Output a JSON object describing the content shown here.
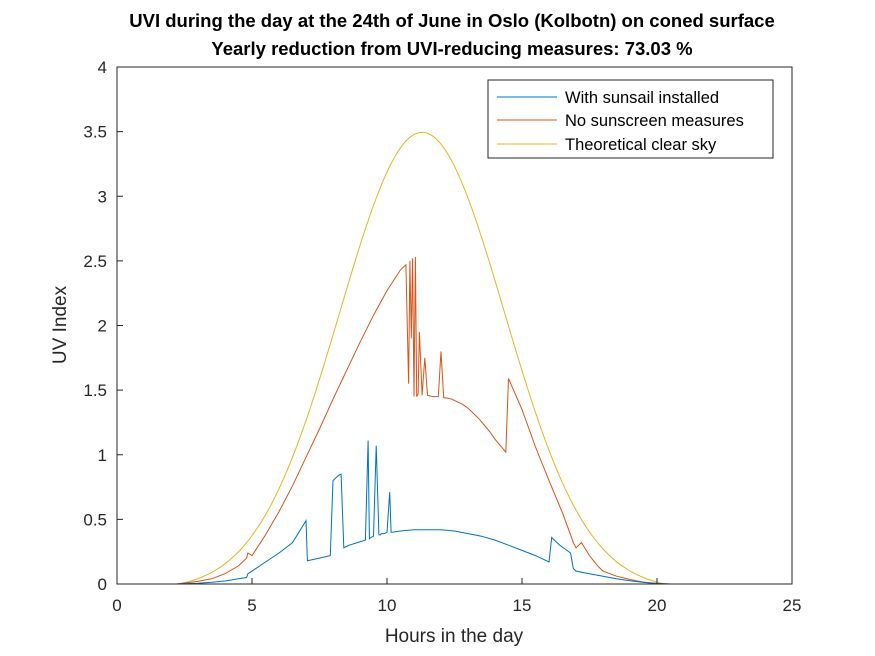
{
  "chart_data": {
    "type": "line",
    "title": "UVI during the day at the 24th of June in Oslo (Kolbotn) on coned surface",
    "subtitle": "Yearly reduction from UVI-reducing measures: 73.03 %",
    "xlabel": "Hours in the day",
    "ylabel": "UV Index",
    "xlim": [
      0,
      25
    ],
    "ylim": [
      0,
      4
    ],
    "xticks": [
      "0",
      "5",
      "10",
      "15",
      "20",
      "25"
    ],
    "yticks": [
      "0",
      "0.5",
      "1",
      "1.5",
      "2",
      "2.5",
      "3",
      "3.5",
      "4"
    ],
    "grid": false,
    "legend_position": "top-right",
    "series": [
      {
        "name": "With sunsail installed",
        "color": "#0072BD",
        "x": [
          0,
          2.2,
          3.0,
          3.5,
          4.0,
          4.5,
          4.8,
          4.85,
          5.0,
          5.5,
          6.0,
          6.5,
          7.0,
          7.05,
          7.5,
          7.9,
          8.0,
          8.1,
          8.2,
          8.3,
          8.4,
          8.5,
          8.6,
          8.9,
          9.2,
          9.3,
          9.35,
          9.4,
          9.5,
          9.6,
          9.7,
          9.75,
          9.8,
          9.9,
          10.0,
          10.1,
          10.15,
          10.2,
          10.5,
          11.0,
          11.5,
          12.0,
          12.5,
          13.0,
          13.5,
          14.0,
          14.5,
          15.0,
          15.5,
          16.0,
          16.1,
          16.2,
          16.4,
          16.6,
          16.8,
          16.9,
          17.0,
          17.5,
          18.0,
          18.5,
          19.0,
          19.5,
          20.0,
          20.5,
          24
        ],
        "y": [
          0,
          0,
          0.006,
          0.013,
          0.023,
          0.04,
          0.05,
          0.08,
          0.1,
          0.17,
          0.24,
          0.32,
          0.49,
          0.18,
          0.2,
          0.22,
          0.8,
          0.82,
          0.84,
          0.85,
          0.28,
          0.29,
          0.3,
          0.32,
          0.34,
          1.11,
          0.35,
          0.36,
          0.37,
          1.07,
          0.38,
          0.38,
          0.39,
          0.39,
          0.4,
          0.71,
          0.4,
          0.4,
          0.41,
          0.42,
          0.42,
          0.42,
          0.41,
          0.39,
          0.37,
          0.34,
          0.3,
          0.26,
          0.22,
          0.17,
          0.36,
          0.34,
          0.3,
          0.27,
          0.24,
          0.12,
          0.1,
          0.08,
          0.06,
          0.04,
          0.025,
          0.012,
          0.004,
          0,
          0
        ]
      },
      {
        "name": "No sunscreen measures",
        "color": "#D95319",
        "x": [
          0,
          2.2,
          3.0,
          3.5,
          4.0,
          4.5,
          4.8,
          4.85,
          5.0,
          5.5,
          6.0,
          6.5,
          7.0,
          7.5,
          8.0,
          8.5,
          9.0,
          9.5,
          10.0,
          10.5,
          10.7,
          10.8,
          10.85,
          10.9,
          10.95,
          11.0,
          11.05,
          11.1,
          11.15,
          11.2,
          11.3,
          11.4,
          11.5,
          11.7,
          11.9,
          12.0,
          12.1,
          12.2,
          12.4,
          12.6,
          12.8,
          13.0,
          13.2,
          13.4,
          13.6,
          13.8,
          14.0,
          14.2,
          14.4,
          14.5,
          15.0,
          15.5,
          16.0,
          16.5,
          16.8,
          16.9,
          17.0,
          17.2,
          17.5,
          17.8,
          18.0,
          18.5,
          19.0,
          19.5,
          20.0,
          20.5,
          24
        ],
        "y": [
          0,
          0,
          0.02,
          0.04,
          0.08,
          0.14,
          0.2,
          0.24,
          0.22,
          0.38,
          0.56,
          0.76,
          0.98,
          1.2,
          1.43,
          1.65,
          1.87,
          2.08,
          2.27,
          2.43,
          2.47,
          1.55,
          2.5,
          1.9,
          2.52,
          1.45,
          2.53,
          1.45,
          1.47,
          1.95,
          1.46,
          1.75,
          1.46,
          1.45,
          1.45,
          1.8,
          1.44,
          1.44,
          1.43,
          1.41,
          1.39,
          1.36,
          1.32,
          1.28,
          1.23,
          1.18,
          1.12,
          1.07,
          1.02,
          1.59,
          1.35,
          1.06,
          0.8,
          0.55,
          0.38,
          0.32,
          0.28,
          0.32,
          0.22,
          0.14,
          0.1,
          0.06,
          0.035,
          0.015,
          0.005,
          0,
          0
        ]
      },
      {
        "name": "Theoretical clear sky",
        "color": "#EDB120",
        "center": 11.3,
        "peak": 3.54,
        "sigma": 3.05,
        "x": [
          0,
          2.3,
          20.2,
          24
        ],
        "y": [
          0,
          0,
          0,
          0
        ]
      }
    ]
  }
}
